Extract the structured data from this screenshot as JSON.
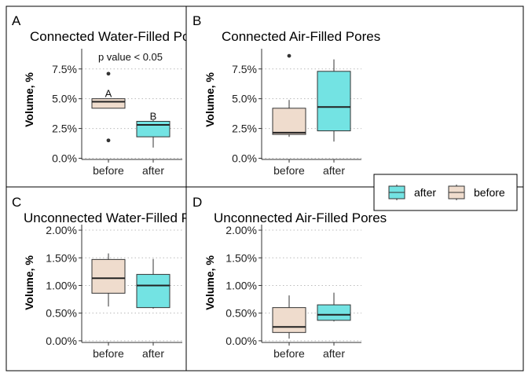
{
  "colors": {
    "before": "#efdccd",
    "after": "#73e3e3",
    "grid": "#bbbbbb",
    "axis": "#333333",
    "outlier": "#333333"
  },
  "legend": {
    "items": [
      {
        "key": "after",
        "label": "after",
        "color": "#73e3e3"
      },
      {
        "key": "before",
        "label": "before",
        "color": "#efdccd"
      }
    ]
  },
  "chart_data": [
    {
      "type": "box",
      "panel": "A",
      "title": "Connected Water-Filled Pores",
      "ylabel": "Volume, %",
      "categories": [
        "before",
        "after"
      ],
      "ylim": [
        -0.1,
        9.2
      ],
      "yticks": [
        0.0,
        2.5,
        5.0,
        7.5
      ],
      "ytick_labels": [
        "0.0%",
        "2.5%",
        "5.0%",
        "7.5%"
      ],
      "annotation": "p value < 0.05",
      "boxes": [
        {
          "category": "before",
          "min": 4.2,
          "q1": 4.2,
          "median": 4.75,
          "q3": 5.0,
          "max": 5.0,
          "outliers": [
            7.1,
            1.5
          ],
          "letter": "A"
        },
        {
          "category": "after",
          "min": 0.9,
          "q1": 1.8,
          "median": 2.8,
          "q3": 3.1,
          "max": 3.2,
          "outliers": [],
          "letter": "B"
        }
      ]
    },
    {
      "type": "box",
      "panel": "B",
      "title": "Connected Air-Filled Pores",
      "ylabel": "Volume, %",
      "categories": [
        "before",
        "after"
      ],
      "ylim": [
        -0.1,
        9.2
      ],
      "yticks": [
        0.0,
        2.5,
        5.0,
        7.5
      ],
      "ytick_labels": [
        "0.0%",
        "2.5%",
        "5.0%",
        "7.5%"
      ],
      "boxes": [
        {
          "category": "before",
          "min": 1.8,
          "q1": 2.0,
          "median": 2.15,
          "q3": 4.2,
          "max": 4.9,
          "outliers": [
            8.6
          ]
        },
        {
          "category": "after",
          "min": 1.4,
          "q1": 2.3,
          "median": 4.3,
          "q3": 7.3,
          "max": 8.3,
          "outliers": []
        }
      ]
    },
    {
      "type": "box",
      "panel": "C",
      "title": "Unconnected Water-Filled Pores",
      "ylabel": "Volume, %",
      "categories": [
        "before",
        "after"
      ],
      "ylim": [
        -0.03,
        2.1
      ],
      "yticks": [
        0.0,
        0.5,
        1.0,
        1.5,
        2.0
      ],
      "ytick_labels": [
        "0.00%",
        "0.50%",
        "1.00%",
        "1.50%",
        "2.00%"
      ],
      "boxes": [
        {
          "category": "before",
          "min": 0.62,
          "q1": 0.86,
          "median": 1.13,
          "q3": 1.47,
          "max": 1.58,
          "outliers": []
        },
        {
          "category": "after",
          "min": 0.58,
          "q1": 0.6,
          "median": 1.0,
          "q3": 1.2,
          "max": 1.48,
          "outliers": []
        }
      ]
    },
    {
      "type": "box",
      "panel": "D",
      "title": "Unconnected Air-Filled Pores",
      "ylabel": "Volume, %",
      "categories": [
        "before",
        "after"
      ],
      "ylim": [
        -0.03,
        2.1
      ],
      "yticks": [
        0.0,
        0.5,
        1.0,
        1.5,
        2.0
      ],
      "ytick_labels": [
        "0.00%",
        "0.50%",
        "1.00%",
        "1.50%",
        "2.00%"
      ],
      "boxes": [
        {
          "category": "before",
          "min": 0.04,
          "q1": 0.15,
          "median": 0.25,
          "q3": 0.6,
          "max": 0.82,
          "outliers": []
        },
        {
          "category": "after",
          "min": 0.35,
          "q1": 0.37,
          "median": 0.47,
          "q3": 0.65,
          "max": 0.87,
          "outliers": []
        }
      ]
    }
  ]
}
